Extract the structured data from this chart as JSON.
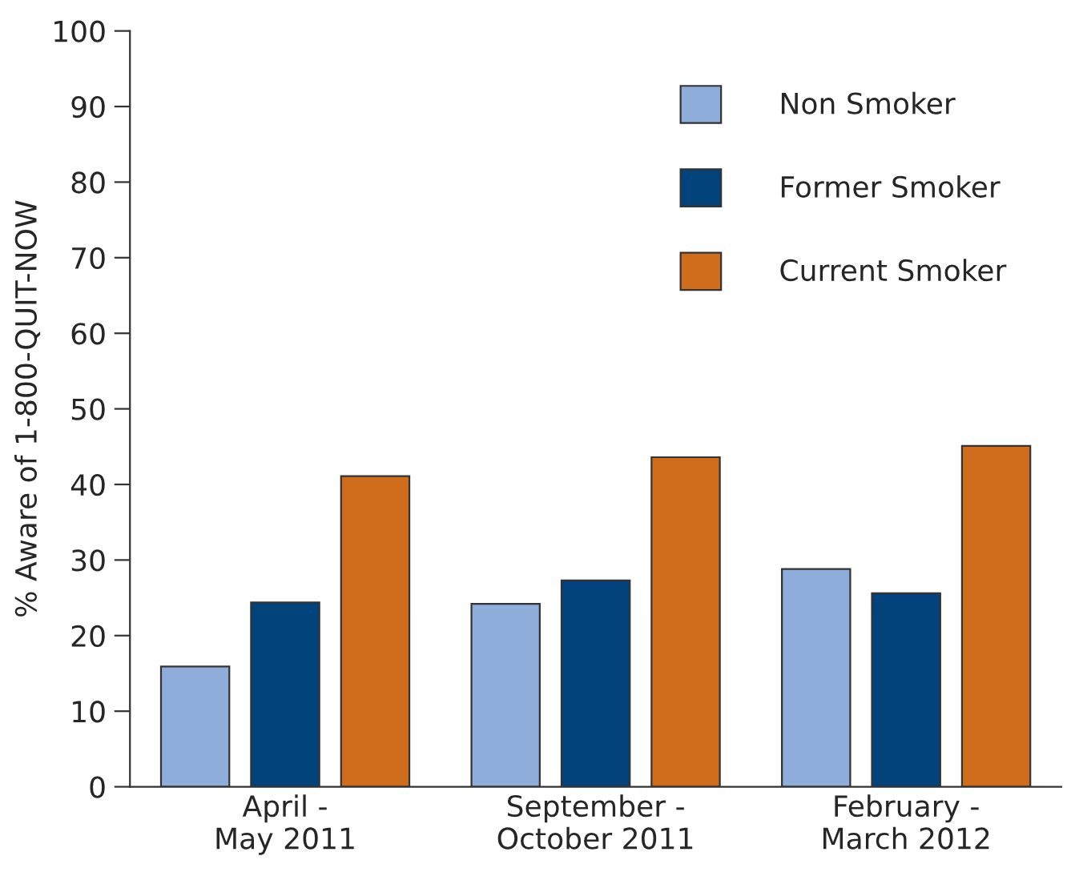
{
  "chart_data": {
    "type": "bar",
    "ylabel": "% Aware of 1-800-QUIT-NOW",
    "categories": [
      "April -\nMay 2011",
      "September -\nOctober 2011",
      "February -\nMarch 2012"
    ],
    "series": [
      {
        "name": "Non Smoker",
        "color": "#8eadda",
        "values": [
          15.9,
          24.2,
          28.8
        ]
      },
      {
        "name": "Former Smoker",
        "color": "#02437c",
        "values": [
          24.4,
          27.3,
          25.6
        ]
      },
      {
        "name": "Current Smoker",
        "color": "#cf6d1c",
        "values": [
          41.1,
          43.6,
          45.1
        ]
      }
    ],
    "ylim": [
      0,
      100
    ],
    "yticks": [
      0,
      10,
      20,
      30,
      40,
      50,
      60,
      70,
      80,
      90,
      100
    ],
    "grid": false,
    "legend": "top right"
  }
}
